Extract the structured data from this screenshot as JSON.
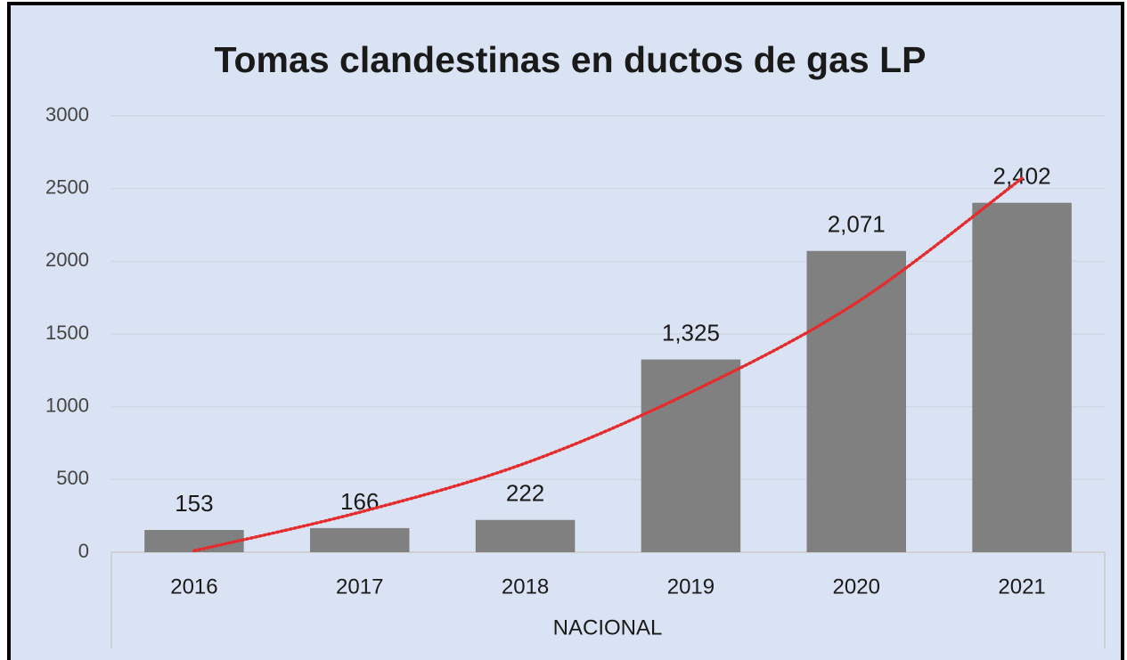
{
  "chart_data": {
    "type": "bar",
    "title": "Tomas clandestinas en ductos de gas LP",
    "x_label": "NACIONAL",
    "categories": [
      "2016",
      "2017",
      "2018",
      "2019",
      "2020",
      "2021"
    ],
    "values": [
      153,
      166,
      222,
      1325,
      2071,
      2402
    ],
    "value_labels": [
      "153",
      "166",
      "222",
      "1,325",
      "2,071",
      "2,402"
    ],
    "color": "#808080",
    "trendline": {
      "color": "#e52b2b",
      "values": [
        10,
        275,
        612,
        1100,
        1715,
        2570
      ]
    },
    "ylim": [
      0,
      3000
    ],
    "yticks": [
      0,
      500,
      1000,
      1500,
      2000,
      2500,
      3000
    ],
    "grid": true
  }
}
